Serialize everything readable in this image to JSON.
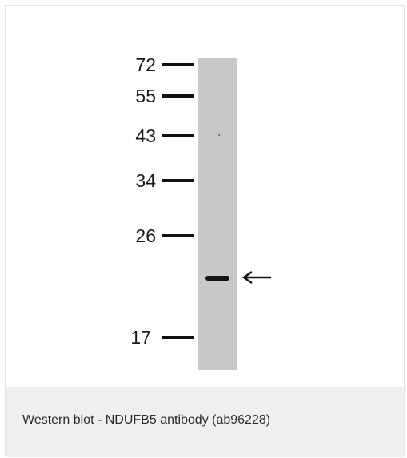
{
  "figure": {
    "marker_labels": [
      "72",
      "55",
      "43",
      "34",
      "26",
      "17"
    ],
    "band_indicator_icon": "left-arrow-icon"
  },
  "caption": {
    "text": "Western blot - NDUFB5 antibody (ab96228)"
  },
  "colors": {
    "lane": "#c8c8c8",
    "band": "#151515",
    "caption_background": "#eeefef"
  }
}
